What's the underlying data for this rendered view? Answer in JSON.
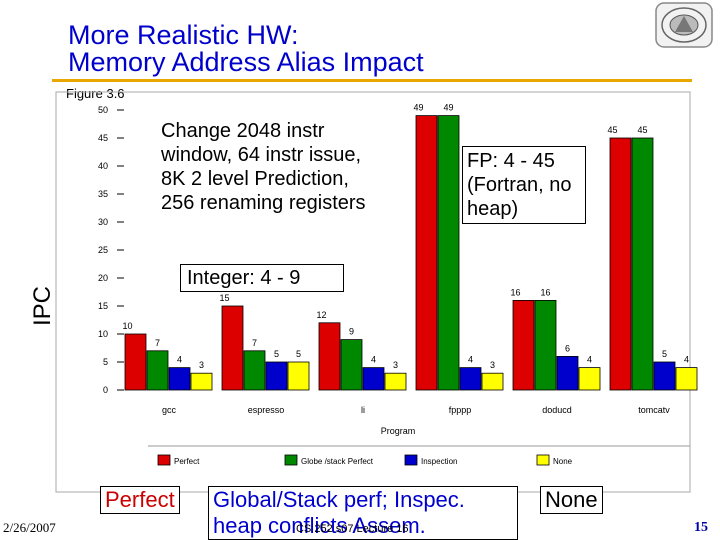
{
  "slide": {
    "title_line1": "More Realistic HW:",
    "title_line2": "Memory Address Alias Impact",
    "figure_label": "Figure 3.6",
    "callout_change": "Change  2048 instr window, 64 instr issue, 8K 2 level Prediction, 256 renaming registers",
    "callout_fp": "FP: 4 - 45 (Fortran, no heap)",
    "callout_int": "Integer: 4 - 9",
    "bottom_perfect": "Perfect",
    "bottom_global": "Global/Stack perf; Inspec. heap conflicts    Assem.",
    "bottom_none": "None",
    "footer_date": "2/26/2007",
    "footer_course": "CS 252 s07 Lecture 16",
    "footer_page": "15"
  },
  "chart_data": {
    "type": "bar",
    "ylabel": "IPC",
    "xlabel": "Program",
    "ylim": [
      0,
      50
    ],
    "yticks": [
      0,
      5,
      10,
      15,
      20,
      25,
      30,
      35,
      40,
      45,
      50
    ],
    "categories": [
      "gcc",
      "espresso",
      "li",
      "fpppp",
      "doducd",
      "tomcatv"
    ],
    "series": [
      {
        "name": "Perfect",
        "color": "#dd0000",
        "values": [
          10,
          15,
          12,
          49,
          16,
          45
        ]
      },
      {
        "name": "Globe /stack Perfect",
        "color": "#008800",
        "values": [
          7,
          7,
          9,
          49,
          16,
          45
        ]
      },
      {
        "name": "Inspection",
        "color": "#0000cc",
        "values": [
          4,
          5,
          4,
          4,
          6,
          5
        ]
      },
      {
        "name": "None",
        "color": "#ffff00",
        "values": [
          3,
          5,
          3,
          3,
          4,
          4
        ]
      }
    ],
    "legend_placement": "bottom",
    "grid": false
  }
}
